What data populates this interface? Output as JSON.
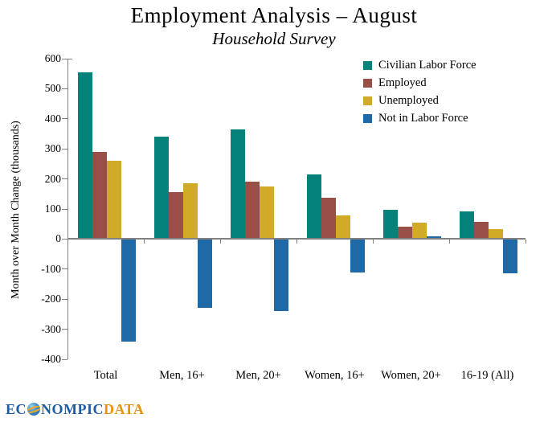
{
  "title": "Employment Analysis – August",
  "subtitle": "Household Survey",
  "logo": {
    "part1": "EC",
    "globe_icon": "globe-icon",
    "part2": "NOMPIC",
    "part3": "DATA"
  },
  "chart_data": {
    "type": "bar",
    "title": "Employment Analysis – August",
    "subtitle": "Household Survey",
    "ylabel": "Month over Month Change (thousands)",
    "ylim": [
      -400,
      600
    ],
    "ytick_step": 100,
    "grid": false,
    "legend_position": "top-right",
    "axis_color": "#808080",
    "categories": [
      "Total",
      "Men, 16+",
      "Men, 20+",
      "Women, 16+",
      "Women, 20+",
      "16-19 (All)"
    ],
    "series": [
      {
        "name": "Civilian Labor Force",
        "color": "#058279",
        "values": [
          555,
          340,
          365,
          215,
          98,
          93
        ]
      },
      {
        "name": "Employed",
        "color": "#984f47",
        "values": [
          290,
          155,
          190,
          137,
          42,
          57
        ]
      },
      {
        "name": "Unemployed",
        "color": "#d1ab28",
        "values": [
          260,
          185,
          175,
          78,
          55,
          33
        ]
      },
      {
        "name": "Not in Labor Force",
        "color": "#1f69a7",
        "values": [
          -342,
          -228,
          -240,
          -110,
          10,
          -113
        ]
      }
    ]
  }
}
